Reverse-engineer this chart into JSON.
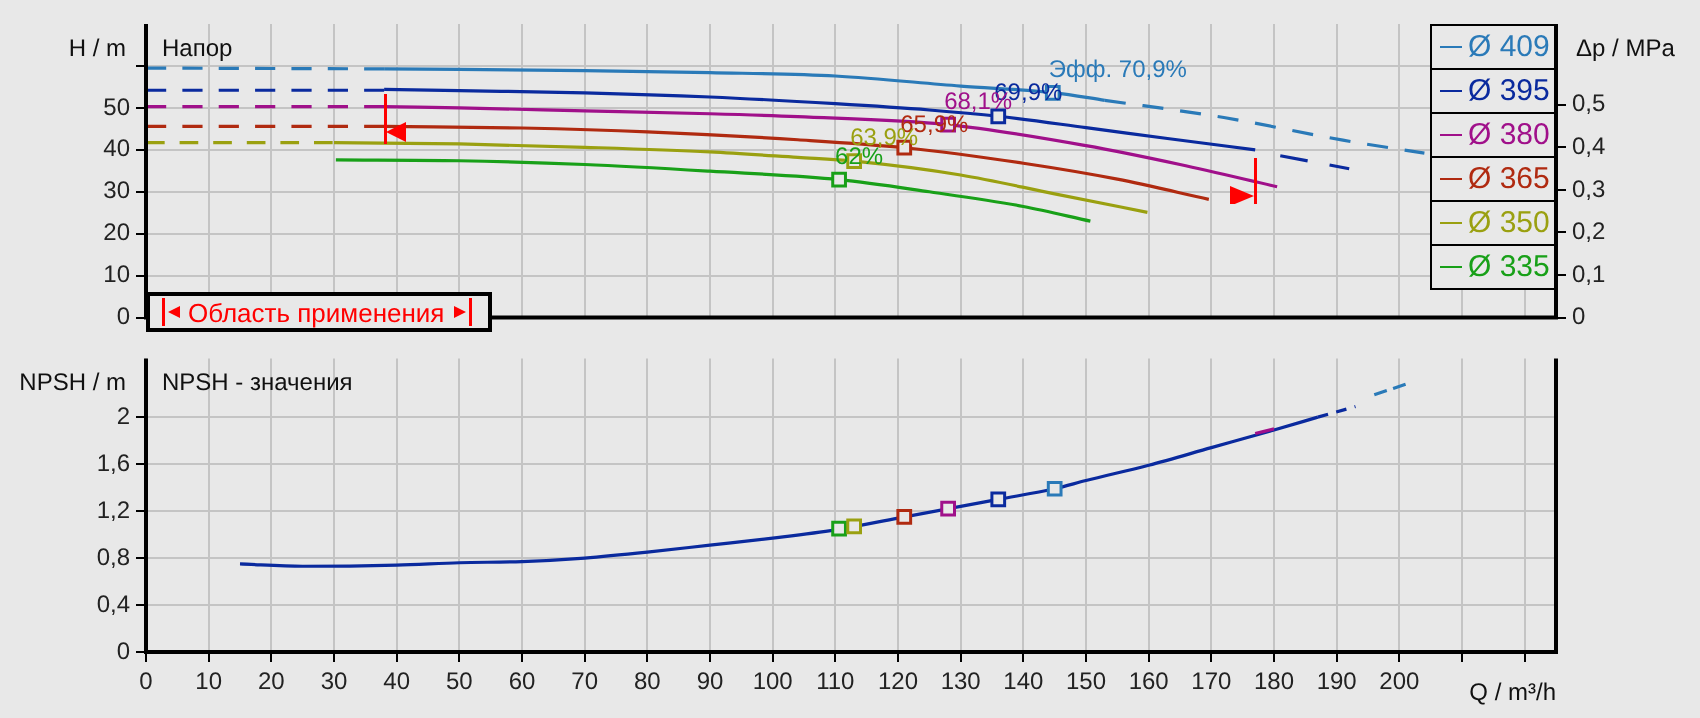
{
  "chart_data": [
    {
      "type": "line",
      "title": "Напор",
      "ylabel": "H / m",
      "y2label": "Δp / MPa",
      "xlim": [
        0,
        225
      ],
      "xticks": [
        0,
        10,
        20,
        30,
        40,
        50,
        60,
        70,
        80,
        90,
        100,
        110,
        120,
        130,
        140,
        150,
        160,
        170,
        180,
        190,
        200,
        210,
        220
      ],
      "ylim": [
        0,
        70
      ],
      "yticks": [
        0,
        10,
        20,
        30,
        40,
        50,
        {
          "value": 60,
          "label": null
        }
      ],
      "y2lim": [
        0,
        0.69
      ],
      "y2ticks": [
        0,
        {
          "value": 0.1,
          "label": "0,1"
        },
        {
          "value": 0.2,
          "label": "0,2"
        },
        {
          "value": 0.3,
          "label": "0,3"
        },
        {
          "value": 0.4,
          "label": "0,4"
        },
        {
          "value": 0.5,
          "label": "0,5"
        }
      ],
      "tick_labels": "y",
      "grid": true,
      "legend": "top right",
      "series": [
        {
          "name": "Ø 409",
          "color": "#2a7ab8",
          "x": [
            38,
            50,
            70,
            90,
            110,
            130,
            145,
            153
          ],
          "values": [
            59.3,
            59.2,
            58.9,
            58.4,
            57.6,
            55.2,
            53.6,
            51.8
          ]
        },
        {
          "color": "#2a7ab8",
          "line_style": "dashed",
          "x": [
            0,
            38
          ],
          "values": [
            59.5,
            59.3
          ]
        },
        {
          "color": "#2a7ab8",
          "line_style": "dashed",
          "x": [
            153,
            172,
            191,
            204
          ],
          "values": [
            51.8,
            47.7,
            42.3,
            39.2
          ]
        },
        {
          "name": "Ø 395",
          "color": "#0a2a9e",
          "x": [
            38,
            50,
            70,
            90,
            110,
            125,
            136,
            150,
            163,
            177
          ],
          "values": [
            54.4,
            54.1,
            53.6,
            52.6,
            51,
            49.5,
            48,
            45.3,
            42.7,
            40
          ]
        },
        {
          "color": "#0a2a9e",
          "line_style": "dashed",
          "x": [
            0,
            38
          ],
          "values": [
            54.2,
            54.2
          ]
        },
        {
          "color": "#0a2a9e",
          "line_style": "dashed",
          "x": [
            181,
            192
          ],
          "values": [
            38.6,
            35.5
          ]
        },
        {
          "name": "Ø 380",
          "color": "#a0108a",
          "x": [
            38,
            50,
            70,
            90,
            104,
            128,
            150,
            165,
            180.5
          ],
          "values": [
            50.3,
            50,
            49.3,
            48.6,
            47.9,
            46,
            41,
            36.5,
            31.2
          ]
        },
        {
          "color": "#a0108a",
          "line_style": "dashed",
          "x": [
            0,
            38
          ],
          "values": [
            50.3,
            50.3
          ]
        },
        {
          "name": "Ø 365",
          "color": "#b02a10",
          "x": [
            38,
            60,
            80,
            104,
            121,
            140,
            155,
            169.6
          ],
          "values": [
            45.6,
            45.2,
            44.3,
            42.4,
            40.5,
            36.8,
            33,
            28.2
          ]
        },
        {
          "color": "#b02a10",
          "line_style": "dashed",
          "x": [
            0,
            38
          ],
          "values": [
            45.6,
            45.6
          ]
        },
        {
          "name": "Ø 350",
          "color": "#9aa010",
          "x": [
            30,
            50,
            70,
            90,
            104,
            113,
            130,
            145,
            159.8
          ],
          "values": [
            41.7,
            41.4,
            40.6,
            39.5,
            38.2,
            37.3,
            34,
            29.5,
            25.1
          ]
        },
        {
          "color": "#9aa010",
          "line_style": "dashed",
          "x": [
            0,
            30
          ],
          "values": [
            41.7,
            41.7
          ]
        },
        {
          "name": "Ø 335",
          "color": "#18a018",
          "x": [
            30.3,
            50,
            70,
            90,
            110.6,
            125,
            140,
            150.7
          ],
          "values": [
            37.6,
            37.4,
            36.5,
            34.9,
            32.9,
            30,
            26.5,
            23
          ]
        },
        {
          "type": "scatter",
          "marker": "square",
          "colors": [
            "#2a7ab8",
            "#0a2a9e",
            "#a0108a",
            "#b02a10",
            "#9aa010",
            "#18a018"
          ],
          "x": [
            144.7,
            136,
            128,
            121,
            113,
            110.6
          ],
          "values": [
            53.6,
            48,
            46,
            40.5,
            37.3,
            32.9
          ]
        }
      ],
      "annotations": [
        "Область применения",
        {
          "text": "Эфф. 70,9%",
          "x": 144.7,
          "y": 53.6
        },
        {
          "text": "69,9%",
          "x": 136,
          "y": 48
        },
        {
          "text": "68,1%",
          "x": 128,
          "y": 46
        },
        {
          "text": "65,9%",
          "x": 121,
          "y": 40.5
        },
        {
          "text": "63,9%",
          "x": 113,
          "y": 37.3
        },
        {
          "text": "62%",
          "x": 110.6,
          "y": 32.9
        }
      ]
    },
    {
      "type": "line",
      "title": "NPSH - значения",
      "ylabel": "NPSH / m",
      "xlabel": "Q / m³/h",
      "xlim": [
        0,
        225
      ],
      "xticks": [
        0,
        10,
        20,
        30,
        40,
        50,
        60,
        70,
        80,
        90,
        100,
        110,
        120,
        130,
        140,
        150,
        160,
        170,
        180,
        190,
        200,
        {
          "value": 210,
          "label": null
        },
        {
          "value": 220,
          "label": null
        }
      ],
      "ylim": [
        0,
        2.5
      ],
      "yticks": [
        0,
        {
          "value": 0.4,
          "label": "0,4"
        },
        {
          "value": 0.8,
          "label": "0,8"
        },
        {
          "value": 1.2,
          "label": "1,2"
        },
        {
          "value": 1.6,
          "label": "1,6"
        },
        2
      ],
      "grid": true,
      "series": [
        {
          "color": "#0a2a9e",
          "x": [
            15,
            25,
            40,
            50,
            60,
            70,
            80,
            90,
            100,
            110,
            120,
            130,
            136,
            145,
            150,
            160,
            170,
            180,
            187
          ],
          "values": [
            0.75,
            0.73,
            0.74,
            0.76,
            0.77,
            0.8,
            0.85,
            0.91,
            0.97,
            1.04,
            1.14,
            1.24,
            1.3,
            1.39,
            1.46,
            1.59,
            1.74,
            1.89,
            2.0
          ]
        },
        {
          "color": "#0a2a9e",
          "line_style": "dashed",
          "x": [
            187,
            193
          ],
          "values": [
            2.0,
            2.09
          ]
        },
        {
          "color": "#a0108a",
          "x": [
            177,
            180
          ],
          "values": [
            1.86,
            1.9
          ]
        },
        {
          "color": "#2a7ab8",
          "line_style": "dashed",
          "x": [
            196,
            201
          ],
          "values": [
            2.19,
            2.28
          ]
        },
        {
          "type": "scatter",
          "marker": "square",
          "colors": [
            "#18a018",
            "#9aa010",
            "#b02a10",
            "#a0108a",
            "#0a2a9e",
            "#2a7ab8"
          ],
          "x": [
            110.6,
            113,
            121,
            128,
            136,
            145
          ],
          "values": [
            1.05,
            1.07,
            1.15,
            1.22,
            1.3,
            1.39
          ]
        }
      ]
    }
  ]
}
